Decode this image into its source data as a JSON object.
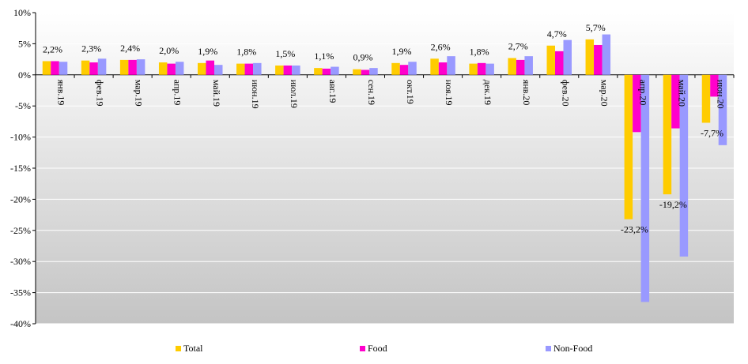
{
  "chart_data": {
    "type": "bar",
    "categories": [
      "янв.19",
      "фев.19",
      "мар.19",
      "апр.19",
      "май.19",
      "июн.19",
      "июл.19",
      "авг.19",
      "сен.19",
      "окт.19",
      "ноя.19",
      "дек.19",
      "янв.20",
      "фев.20",
      "мар.20",
      "апр.20",
      "май.20",
      "июн.20"
    ],
    "series": [
      {
        "name": "Total",
        "color": "#FFCC00",
        "values": [
          2.2,
          2.3,
          2.4,
          2.0,
          1.9,
          1.8,
          1.5,
          1.1,
          0.9,
          1.9,
          2.6,
          1.8,
          2.7,
          4.7,
          5.7,
          -23.2,
          -19.2,
          -7.7
        ]
      },
      {
        "name": "Food",
        "color": "#FF00CC",
        "values": [
          2.2,
          2.0,
          2.4,
          1.8,
          2.3,
          1.8,
          1.5,
          1.0,
          0.8,
          1.6,
          2.0,
          1.9,
          2.4,
          3.8,
          4.8,
          -9.2,
          -8.6,
          -3.5
        ]
      },
      {
        "name": "Non-Food",
        "color": "#9999FF",
        "values": [
          2.1,
          2.6,
          2.5,
          2.1,
          1.6,
          1.9,
          1.5,
          1.3,
          1.1,
          2.1,
          3.0,
          1.8,
          3.0,
          5.6,
          6.5,
          -36.5,
          -29.2,
          -11.3
        ]
      }
    ],
    "data_labels": [
      "2,2%",
      "2,3%",
      "2,4%",
      "2,0%",
      "1,9%",
      "1,8%",
      "1,5%",
      "1,1%",
      "0,9%",
      "1,9%",
      "2,6%",
      "1,8%",
      "2,7%",
      "4,7%",
      "5,7%",
      "-23,2%",
      "-19,2%",
      "-7,7%"
    ],
    "y_ticks": [
      10,
      5,
      0,
      -5,
      -10,
      -15,
      -20,
      -25,
      -30,
      -35,
      -40
    ],
    "y_tick_labels": [
      "10%",
      "5%",
      "0%",
      "-5%",
      "-10%",
      "-15%",
      "-20%",
      "-25%",
      "-30%",
      "-35%",
      "-40%"
    ],
    "ylim": [
      -40,
      10
    ],
    "grid": true,
    "legend_position": "bottom",
    "background_gradient": [
      "#FFFFFF",
      "#C4C4C4"
    ]
  }
}
